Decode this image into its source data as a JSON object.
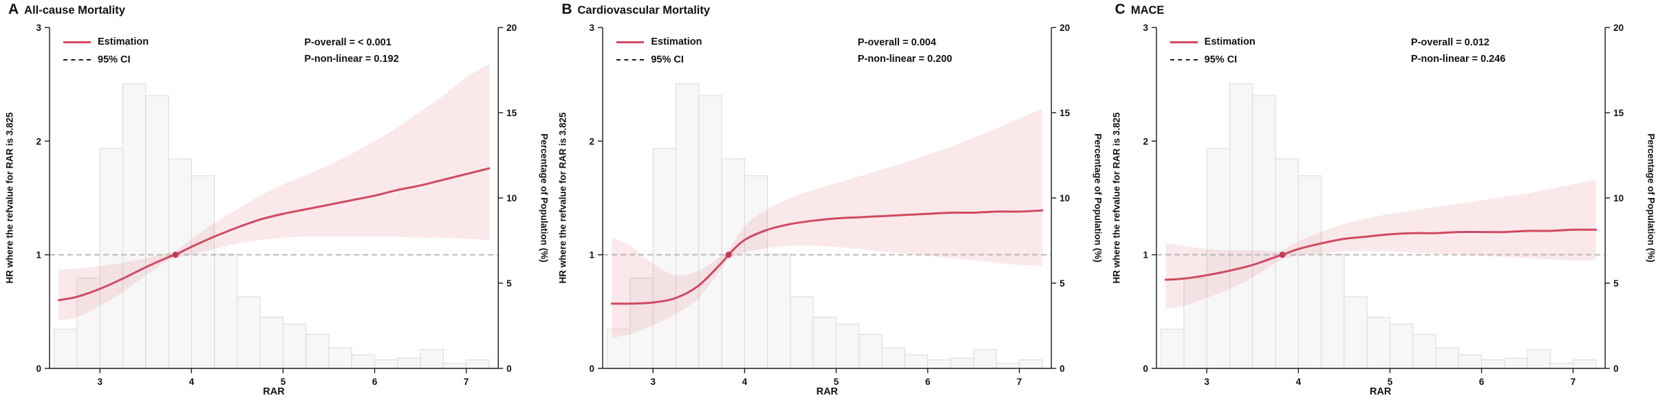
{
  "figure": {
    "legend": {
      "estimation": "Estimation",
      "ci": "95% CI"
    },
    "x_label": "RAR",
    "y_left_label": "HR where the refvalue for RAR is 3.825",
    "y_right_label": "Percentage of Population (%)",
    "colors": {
      "estimation": "#cf4a60",
      "ci_band": "rgba(214,69,92,0.12)",
      "ref_line": "#b5b5b5",
      "bar_fill": "#f8f7f7",
      "bar_stroke": "#d9d9d9",
      "dot": "#c43b52",
      "axis": "#1a1a1a"
    }
  },
  "chart_data": [
    {
      "type": "line",
      "panel_letter": "A",
      "title": "All-cause Mortality",
      "p_overall_label": "P-overall = < 0.001",
      "p_nonlinear_label": "P-non-linear = 0.192",
      "legend": [
        "Estimation",
        "95% CI"
      ],
      "x_axis": {
        "label": "RAR",
        "ticks": [
          3,
          4,
          5,
          6,
          7
        ],
        "range": [
          2.45,
          7.35
        ]
      },
      "y_left_axis": {
        "label": "HR where the refvalue for RAR is 3.825",
        "ticks": [
          0,
          1,
          2,
          3
        ],
        "range": [
          0,
          3
        ]
      },
      "y_right_axis": {
        "label": "Percentage of Population (%)",
        "ticks": [
          0,
          5,
          10,
          15,
          20
        ],
        "range": [
          0,
          20
        ]
      },
      "reference": {
        "x": 3.825,
        "hr": 1.0
      },
      "series": {
        "x": [
          2.55,
          2.75,
          3.0,
          3.25,
          3.5,
          3.75,
          3.825,
          4.0,
          4.25,
          4.5,
          4.75,
          5.0,
          5.25,
          5.5,
          5.75,
          6.0,
          6.25,
          6.5,
          6.75,
          7.0,
          7.25
        ],
        "estimation": [
          0.6,
          0.63,
          0.7,
          0.79,
          0.89,
          0.98,
          1.0,
          1.07,
          1.16,
          1.24,
          1.31,
          1.36,
          1.4,
          1.44,
          1.48,
          1.52,
          1.57,
          1.61,
          1.66,
          1.71,
          1.76
        ],
        "ci_lower": [
          0.42,
          0.45,
          0.55,
          0.67,
          0.82,
          0.95,
          0.97,
          1.0,
          1.05,
          1.1,
          1.13,
          1.15,
          1.16,
          1.16,
          1.16,
          1.16,
          1.16,
          1.15,
          1.15,
          1.14,
          1.13
        ],
        "ci_upper": [
          0.87,
          0.88,
          0.9,
          0.93,
          0.97,
          1.02,
          1.03,
          1.14,
          1.28,
          1.4,
          1.52,
          1.62,
          1.7,
          1.79,
          1.89,
          2.0,
          2.12,
          2.26,
          2.4,
          2.56,
          2.68
        ]
      },
      "histogram": {
        "bin_width": 0.25,
        "bin_left_edges": [
          2.5,
          2.75,
          3.0,
          3.25,
          3.5,
          3.75,
          4.0,
          4.25,
          4.5,
          4.75,
          5.0,
          5.25,
          5.5,
          5.75,
          6.0,
          6.25,
          6.5,
          6.75,
          7.0
        ],
        "percent": [
          2.3,
          5.3,
          12.9,
          16.7,
          16.0,
          12.3,
          11.3,
          6.7,
          4.2,
          3.0,
          2.6,
          2.0,
          1.2,
          0.8,
          0.5,
          0.6,
          1.1,
          0.3,
          0.5
        ]
      }
    },
    {
      "type": "line",
      "panel_letter": "B",
      "title": "Cardiovascular Mortality",
      "p_overall_label": "P-overall = 0.004",
      "p_nonlinear_label": "P-non-linear = 0.200",
      "legend": [
        "Estimation",
        "95% CI"
      ],
      "x_axis": {
        "label": "RAR",
        "ticks": [
          3,
          4,
          5,
          6,
          7
        ],
        "range": [
          2.45,
          7.35
        ]
      },
      "y_left_axis": {
        "label": "HR where the refvalue for RAR is 3.825",
        "ticks": [
          0,
          1,
          2,
          3
        ],
        "range": [
          0,
          3
        ]
      },
      "y_right_axis": {
        "label": "Percentage of Population (%)",
        "ticks": [
          0,
          5,
          10,
          15,
          20
        ],
        "range": [
          0,
          20
        ]
      },
      "reference": {
        "x": 3.825,
        "hr": 1.0
      },
      "series": {
        "x": [
          2.55,
          2.75,
          3.0,
          3.25,
          3.5,
          3.75,
          3.825,
          4.0,
          4.25,
          4.5,
          4.75,
          5.0,
          5.25,
          5.5,
          5.75,
          6.0,
          6.25,
          6.5,
          6.75,
          7.0,
          7.25
        ],
        "estimation": [
          0.57,
          0.57,
          0.58,
          0.62,
          0.73,
          0.93,
          1.0,
          1.13,
          1.22,
          1.27,
          1.3,
          1.32,
          1.33,
          1.34,
          1.35,
          1.36,
          1.37,
          1.37,
          1.38,
          1.38,
          1.39
        ],
        "ci_lower": [
          0.27,
          0.3,
          0.38,
          0.48,
          0.62,
          0.88,
          0.96,
          1.02,
          1.06,
          1.08,
          1.08,
          1.07,
          1.05,
          1.03,
          1.01,
          0.99,
          0.97,
          0.95,
          0.93,
          0.91,
          0.9
        ],
        "ci_upper": [
          1.15,
          1.08,
          0.92,
          0.82,
          0.86,
          0.99,
          1.04,
          1.25,
          1.4,
          1.5,
          1.57,
          1.63,
          1.69,
          1.75,
          1.81,
          1.88,
          1.95,
          2.03,
          2.11,
          2.2,
          2.28
        ]
      },
      "histogram": {
        "bin_width": 0.25,
        "bin_left_edges": [
          2.5,
          2.75,
          3.0,
          3.25,
          3.5,
          3.75,
          4.0,
          4.25,
          4.5,
          4.75,
          5.0,
          5.25,
          5.5,
          5.75,
          6.0,
          6.25,
          6.5,
          6.75,
          7.0
        ],
        "percent": [
          2.3,
          5.3,
          12.9,
          16.7,
          16.0,
          12.3,
          11.3,
          6.7,
          4.2,
          3.0,
          2.6,
          2.0,
          1.2,
          0.8,
          0.5,
          0.6,
          1.1,
          0.3,
          0.5
        ]
      }
    },
    {
      "type": "line",
      "panel_letter": "C",
      "title": "MACE",
      "p_overall_label": "P-overall = 0.012",
      "p_nonlinear_label": "P-non-linear = 0.246",
      "legend": [
        "Estimation",
        "95% CI"
      ],
      "x_axis": {
        "label": "RAR",
        "ticks": [
          3,
          4,
          5,
          6,
          7
        ],
        "range": [
          2.45,
          7.35
        ]
      },
      "y_left_axis": {
        "label": "HR where the refvalue for RAR is 3.825",
        "ticks": [
          0,
          1,
          2,
          3
        ],
        "range": [
          0,
          3
        ]
      },
      "y_right_axis": {
        "label": "Percentage of Population (%)",
        "ticks": [
          0,
          5,
          10,
          15,
          20
        ],
        "range": [
          0,
          20
        ]
      },
      "reference": {
        "x": 3.825,
        "hr": 1.0
      },
      "series": {
        "x": [
          2.55,
          2.75,
          3.0,
          3.25,
          3.5,
          3.75,
          3.825,
          4.0,
          4.25,
          4.5,
          4.75,
          5.0,
          5.25,
          5.5,
          5.75,
          6.0,
          6.25,
          6.5,
          6.75,
          7.0,
          7.25
        ],
        "estimation": [
          0.78,
          0.79,
          0.82,
          0.86,
          0.91,
          0.98,
          1.0,
          1.05,
          1.1,
          1.14,
          1.16,
          1.18,
          1.19,
          1.19,
          1.2,
          1.2,
          1.2,
          1.21,
          1.21,
          1.22,
          1.22
        ],
        "ci_lower": [
          0.52,
          0.55,
          0.62,
          0.7,
          0.8,
          0.93,
          0.96,
          0.99,
          1.01,
          1.03,
          1.03,
          1.03,
          1.02,
          1.01,
          1.0,
          0.99,
          0.98,
          0.97,
          0.96,
          0.95,
          0.95
        ],
        "ci_upper": [
          1.1,
          1.08,
          1.05,
          1.04,
          1.04,
          1.03,
          1.04,
          1.12,
          1.2,
          1.27,
          1.32,
          1.36,
          1.39,
          1.42,
          1.45,
          1.48,
          1.51,
          1.54,
          1.58,
          1.62,
          1.66
        ]
      },
      "histogram": {
        "bin_width": 0.25,
        "bin_left_edges": [
          2.5,
          2.75,
          3.0,
          3.25,
          3.5,
          3.75,
          4.0,
          4.25,
          4.5,
          4.75,
          5.0,
          5.25,
          5.5,
          5.75,
          6.0,
          6.25,
          6.5,
          6.75,
          7.0
        ],
        "percent": [
          2.3,
          5.3,
          12.9,
          16.7,
          16.0,
          12.3,
          11.3,
          6.7,
          4.2,
          3.0,
          2.6,
          2.0,
          1.2,
          0.8,
          0.5,
          0.6,
          1.1,
          0.3,
          0.5
        ]
      }
    }
  ]
}
